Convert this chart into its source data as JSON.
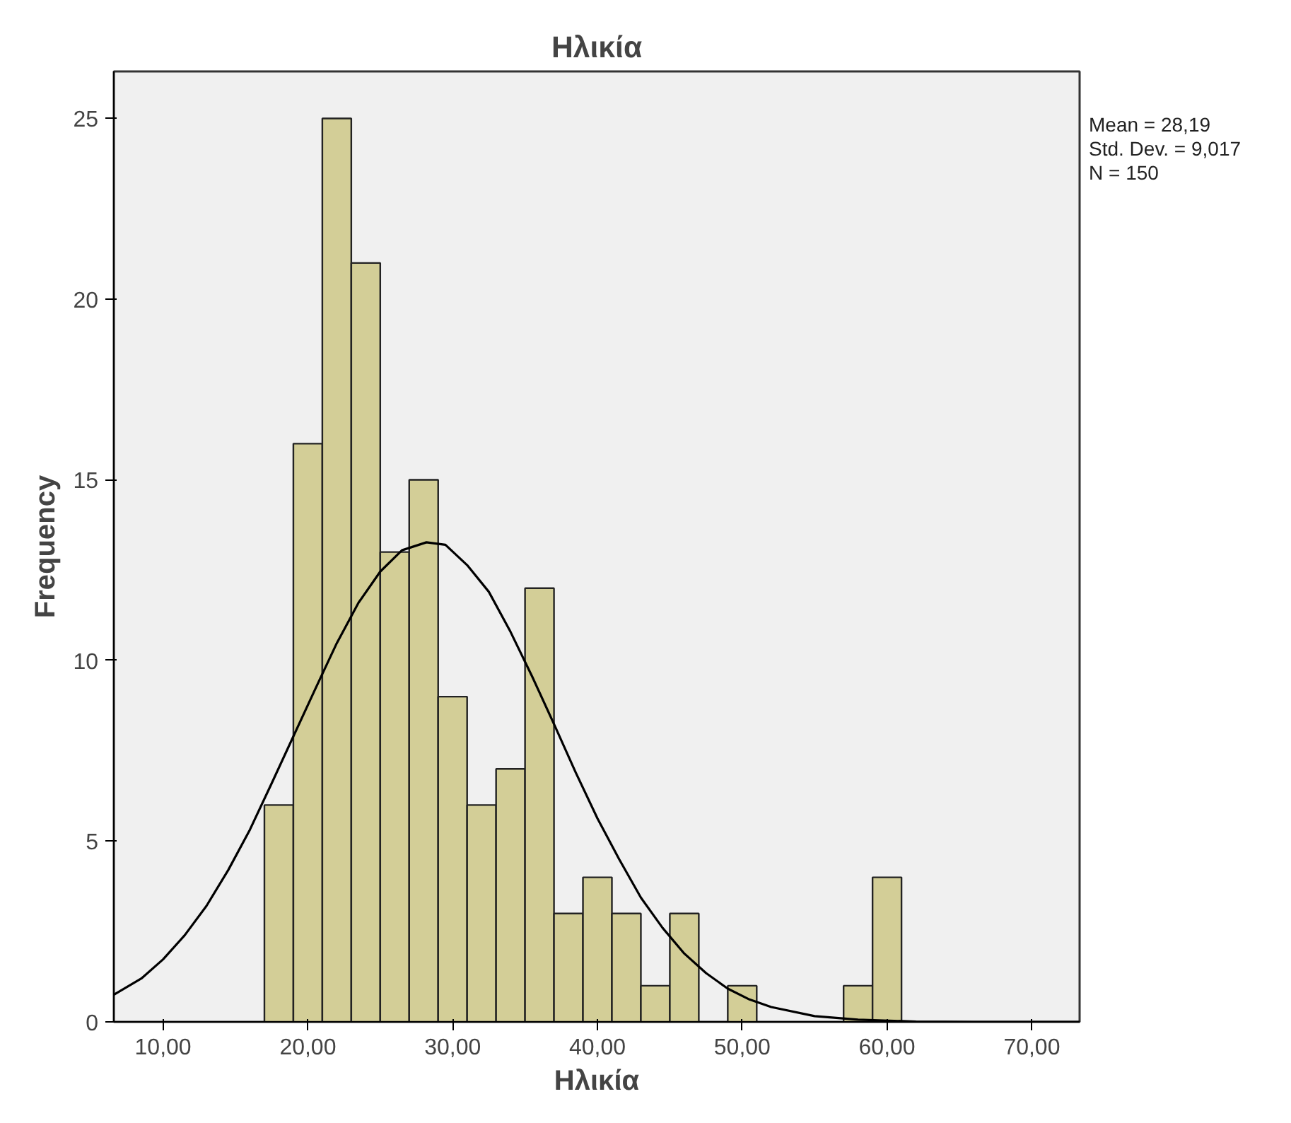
{
  "chart_data": {
    "type": "histogram",
    "title": "Ηλικία",
    "xlabel": "Ηλικία",
    "ylabel": "Frequency",
    "bins": [
      17,
      19,
      21,
      23,
      25,
      27,
      29,
      31,
      33,
      35,
      37,
      39,
      41,
      43,
      45,
      47,
      49,
      51,
      53,
      55,
      57,
      59,
      61
    ],
    "values": [
      6,
      16,
      25,
      21,
      13,
      15,
      9,
      6,
      7,
      12,
      3,
      4,
      3,
      1,
      3,
      0,
      1,
      0,
      0,
      0,
      1,
      4
    ],
    "color": "#d3ce97",
    "series": [
      {
        "type": "line",
        "color": "#000000",
        "x": [
          6.6,
          8.5,
          10,
          11.5,
          13,
          14.5,
          16,
          17.5,
          19,
          20.5,
          22,
          23.5,
          25,
          26.5,
          28.19,
          29.5,
          31,
          32.5,
          34,
          35.5,
          37,
          38.5,
          40,
          41.5,
          43,
          44.5,
          46,
          47.5,
          49,
          50.5,
          52,
          55,
          58,
          62,
          66,
          73.3
        ],
        "values": [
          0.75,
          1.2,
          1.73,
          2.4,
          3.21,
          4.2,
          5.32,
          6.6,
          7.9,
          9.2,
          10.48,
          11.6,
          12.46,
          13.05,
          13.27,
          13.2,
          12.64,
          11.9,
          10.79,
          9.55,
          8.24,
          6.9,
          5.63,
          4.5,
          3.44,
          2.6,
          1.89,
          1.35,
          0.92,
          0.62,
          0.41,
          0.16,
          0.06,
          0.01,
          0,
          0
        ]
      }
    ],
    "xlim": [
      6.6,
      73.3
    ],
    "ylim": [
      0,
      26.3
    ],
    "xticks": [
      {
        "value": 10,
        "label": "10,00"
      },
      {
        "value": 20,
        "label": "20,00"
      },
      {
        "value": 30,
        "label": "30,00"
      },
      {
        "value": 40,
        "label": "40,00"
      },
      {
        "value": 50,
        "label": "50,00"
      },
      {
        "value": 60,
        "label": "60,00"
      },
      {
        "value": 70,
        "label": "70,00"
      }
    ],
    "yticks": [
      0,
      5,
      10,
      15,
      20,
      25
    ],
    "grid": false,
    "annotations": [
      "Mean = 28,19",
      "Std. Dev. = 9,017",
      "N = 150"
    ]
  }
}
